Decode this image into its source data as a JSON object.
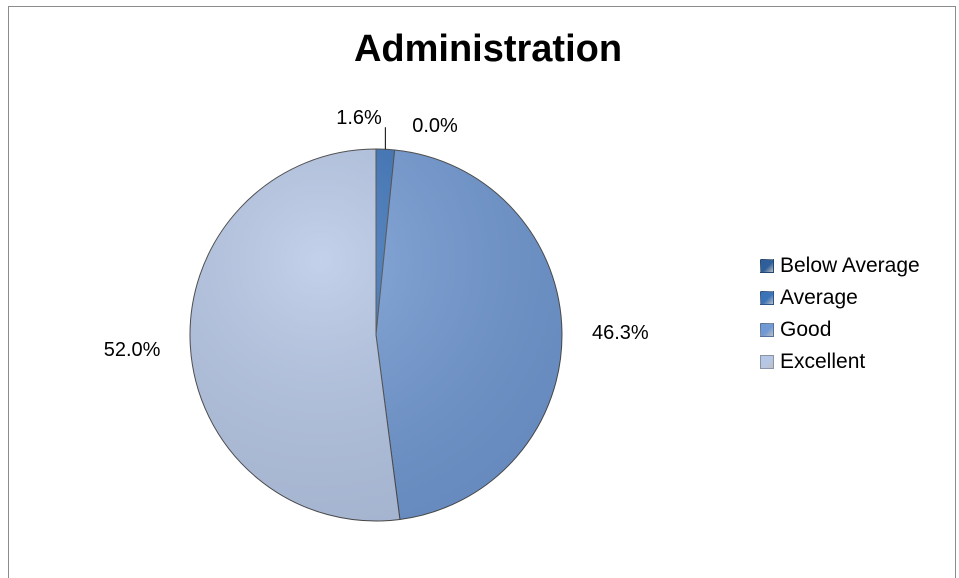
{
  "chart_data": {
    "type": "pie",
    "title": "Administration",
    "categories": [
      "Below Average",
      "Average",
      "Good",
      "Excellent"
    ],
    "values": [
      0.0,
      1.6,
      46.3,
      52.0
    ],
    "data_labels": [
      "0.0%",
      "1.6%",
      "46.3%",
      "52.0%"
    ],
    "colors": [
      "#2e5f9a",
      "#3b73b9",
      "#7199d3",
      "#b6c7e6"
    ],
    "legend_position": "right"
  }
}
